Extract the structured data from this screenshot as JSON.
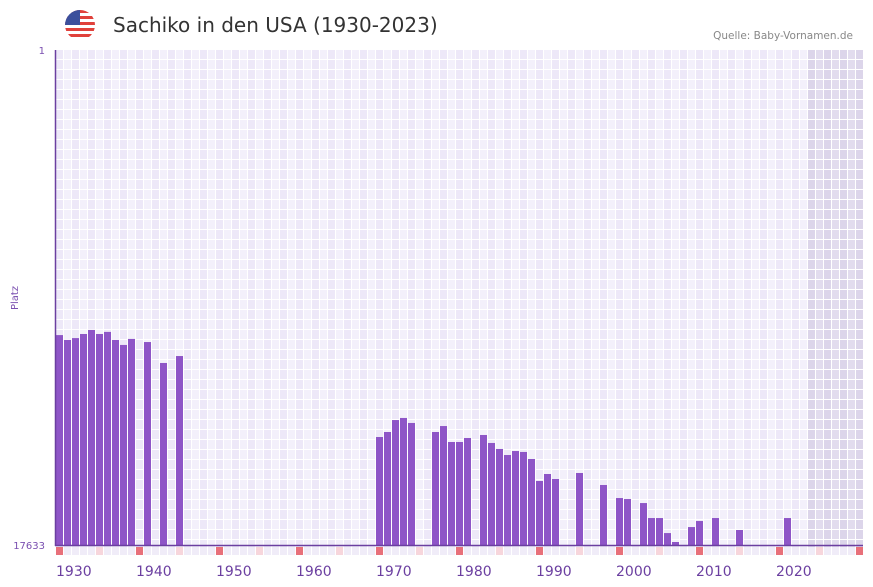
{
  "header": {
    "title": "Sachiko in den USA (1930-2023)",
    "source": "Quelle: Baby-Vornamen.de",
    "flag_icon": "us-flag-icon"
  },
  "colors": {
    "bar": "#8e55c7",
    "axis": "#6b3fa0",
    "decade_marker": "#e8707a",
    "mid_marker": "#f7d6dc"
  },
  "chart_data": {
    "type": "bar",
    "title": "Sachiko in den USA (1930-2023)",
    "xlabel": "",
    "ylabel": "Platz",
    "y_scale": "log-reversed",
    "ylim": [
      1,
      17633
    ],
    "y_tick_labels": [
      "1",
      "17633"
    ],
    "xlim": [
      1930,
      2030
    ],
    "x_tick_labels": [
      "1930",
      "1940",
      "1950",
      "1960",
      "1970",
      "1980",
      "1990",
      "2000",
      "2010",
      "2020"
    ],
    "x_tick_values": [
      1930,
      1940,
      1950,
      1960,
      1970,
      1980,
      1990,
      2000,
      2010,
      2020
    ],
    "future_shaded_from": 2024,
    "grid": true,
    "points": [
      {
        "year": 1930,
        "rank": 279
      },
      {
        "year": 1931,
        "rank": 307
      },
      {
        "year": 1932,
        "rank": 296
      },
      {
        "year": 1933,
        "rank": 273
      },
      {
        "year": 1934,
        "rank": 252
      },
      {
        "year": 1935,
        "rank": 273
      },
      {
        "year": 1936,
        "rank": 262
      },
      {
        "year": 1937,
        "rank": 307
      },
      {
        "year": 1938,
        "rank": 339
      },
      {
        "year": 1939,
        "rank": 301
      },
      {
        "year": 1941,
        "rank": 320
      },
      {
        "year": 1943,
        "rank": 484
      },
      {
        "year": 1945,
        "rank": 422
      },
      {
        "year": 1970,
        "rank": 2089
      },
      {
        "year": 1971,
        "rank": 1892
      },
      {
        "year": 1972,
        "rank": 1494
      },
      {
        "year": 1973,
        "rank": 1434
      },
      {
        "year": 1974,
        "rank": 1583
      },
      {
        "year": 1977,
        "rank": 1892
      },
      {
        "year": 1978,
        "rank": 1682
      },
      {
        "year": 1979,
        "rank": 2305
      },
      {
        "year": 1980,
        "rank": 2305
      },
      {
        "year": 1981,
        "rank": 2130
      },
      {
        "year": 1983,
        "rank": 2007
      },
      {
        "year": 1984,
        "rank": 2350
      },
      {
        "year": 1985,
        "rank": 2646
      },
      {
        "year": 1986,
        "rank": 2981
      },
      {
        "year": 1987,
        "rank": 2755
      },
      {
        "year": 1988,
        "rank": 2807
      },
      {
        "year": 1989,
        "rank": 3226
      },
      {
        "year": 1990,
        "rank": 4980
      },
      {
        "year": 1991,
        "rank": 4338
      },
      {
        "year": 1992,
        "rank": 4788
      },
      {
        "year": 1995,
        "rank": 4252
      },
      {
        "year": 1998,
        "rank": 5389
      },
      {
        "year": 2000,
        "rank": 6971
      },
      {
        "year": 2001,
        "rank": 7112
      },
      {
        "year": 2003,
        "rank": 7699
      },
      {
        "year": 2004,
        "rank": 10350
      },
      {
        "year": 2005,
        "rank": 10350
      },
      {
        "year": 2006,
        "rank": 13930
      },
      {
        "year": 2007,
        "rank": 16620
      },
      {
        "year": 2009,
        "rank": 12370
      },
      {
        "year": 2010,
        "rank": 10980
      },
      {
        "year": 2012,
        "rank": 10350
      },
      {
        "year": 2015,
        "rank": 13110
      },
      {
        "year": 2021,
        "rank": 10350
      }
    ]
  }
}
